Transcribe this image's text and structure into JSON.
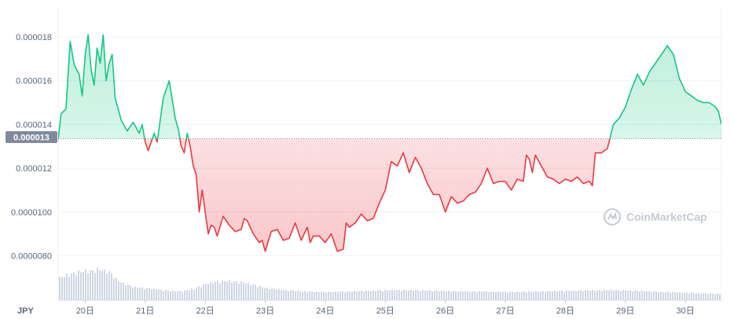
{
  "chart_data": {
    "type": "line",
    "y_tick_labels": [
      "0.000018",
      "0.000016",
      "0.000014",
      "0.000012",
      "0.0000100",
      "0.0000080"
    ],
    "y_ticks": [
      1.8e-05,
      1.6e-05,
      1.4e-05,
      1.2e-05,
      1e-05,
      8e-06
    ],
    "ylim": [
      7.8e-06,
      1.89e-05
    ],
    "x_tick_labels": [
      "20日",
      "21日",
      "22日",
      "23日",
      "24日",
      "25日",
      "26日",
      "27日",
      "28日",
      "29日",
      "30日"
    ],
    "x_ticks": [
      20,
      21,
      22,
      23,
      24,
      25,
      26,
      27,
      28,
      29,
      30
    ],
    "xlim": [
      19.55,
      30.6
    ],
    "currency": "JPY",
    "baseline_label": "0.000013",
    "baseline_value": 1.335e-05,
    "watermark": "CoinMarketCap",
    "colors": {
      "up": "#16c784",
      "down": "#ea3943",
      "volume": "#cfd6e4",
      "badge": "#808a9d",
      "grid": "#eff2f5"
    },
    "price": {
      "x": [
        19.55,
        19.6,
        19.68,
        19.75,
        19.82,
        19.9,
        19.95,
        20.0,
        20.05,
        20.1,
        20.15,
        20.2,
        20.25,
        20.3,
        20.35,
        20.4,
        20.45,
        20.5,
        20.6,
        20.7,
        20.8,
        20.9,
        20.95,
        21.0,
        21.05,
        21.1,
        21.15,
        21.2,
        21.3,
        21.4,
        21.5,
        21.55,
        21.6,
        21.65,
        21.7,
        21.75,
        21.8,
        21.85,
        21.9,
        21.95,
        22.0,
        22.05,
        22.1,
        22.15,
        22.2,
        22.3,
        22.4,
        22.5,
        22.6,
        22.65,
        22.7,
        22.8,
        22.9,
        22.95,
        23.0,
        23.1,
        23.2,
        23.3,
        23.4,
        23.5,
        23.6,
        23.7,
        23.75,
        23.8,
        23.9,
        24.0,
        24.1,
        24.2,
        24.3,
        24.35,
        24.4,
        24.5,
        24.6,
        24.7,
        24.8,
        24.9,
        25.0,
        25.1,
        25.2,
        25.3,
        25.4,
        25.5,
        25.6,
        25.7,
        25.8,
        25.9,
        26.0,
        26.1,
        26.2,
        26.3,
        26.4,
        26.5,
        26.6,
        26.7,
        26.8,
        26.9,
        27.0,
        27.1,
        27.2,
        27.3,
        27.35,
        27.4,
        27.45,
        27.5,
        27.6,
        27.7,
        27.8,
        27.9,
        28.0,
        28.1,
        28.2,
        28.3,
        28.4,
        28.45,
        28.5,
        28.6,
        28.7,
        28.8,
        28.9,
        29.0,
        29.1,
        29.2,
        29.3,
        29.4,
        29.5,
        29.6,
        29.7,
        29.8,
        29.9,
        30.0,
        30.1,
        30.2,
        30.3,
        30.4,
        30.5,
        30.55,
        30.6
      ],
      "y": [
        1.33e-05,
        1.45e-05,
        1.47e-05,
        1.78e-05,
        1.67e-05,
        1.63e-05,
        1.53e-05,
        1.72e-05,
        1.81e-05,
        1.65e-05,
        1.58e-05,
        1.75e-05,
        1.68e-05,
        1.81e-05,
        1.6e-05,
        1.68e-05,
        1.72e-05,
        1.52e-05,
        1.42e-05,
        1.37e-05,
        1.41e-05,
        1.36e-05,
        1.4e-05,
        1.32e-05,
        1.28e-05,
        1.32e-05,
        1.36e-05,
        1.32e-05,
        1.52e-05,
        1.6e-05,
        1.43e-05,
        1.38e-05,
        1.3e-05,
        1.27e-05,
        1.36e-05,
        1.3e-05,
        1.21e-05,
        1.17e-05,
        1e-05,
        1.1e-05,
        1e-05,
        9e-06,
        9.4e-06,
        9.3e-06,
        8.9e-06,
        9.8e-06,
        9.4e-06,
        9.1e-06,
        9.2e-06,
        9.7e-06,
        9.6e-06,
        9e-06,
        8.6e-06,
        8.7e-06,
        8.2e-06,
        9.1e-06,
        9.2e-06,
        8.7e-06,
        8.8e-06,
        9.5e-06,
        8.7e-06,
        9.3e-06,
        8.6e-06,
        8.9e-06,
        8.9e-06,
        8.6e-06,
        9e-06,
        8.2e-06,
        8.3e-06,
        9.5e-06,
        9.3e-06,
        9.5e-06,
        9.9e-06,
        9.6e-06,
        9.7e-06,
        1.04e-05,
        1.1e-05,
        1.23e-05,
        1.21e-05,
        1.27e-05,
        1.18e-05,
        1.25e-05,
        1.2e-05,
        1.13e-05,
        1.08e-05,
        1.08e-05,
        1e-05,
        1.07e-05,
        1.04e-05,
        1.05e-05,
        1.08e-05,
        1.09e-05,
        1.13e-05,
        1.2e-05,
        1.13e-05,
        1.14e-05,
        1.14e-05,
        1.1e-05,
        1.15e-05,
        1.14e-05,
        1.26e-05,
        1.24e-05,
        1.18e-05,
        1.26e-05,
        1.21e-05,
        1.16e-05,
        1.15e-05,
        1.13e-05,
        1.15e-05,
        1.14e-05,
        1.16e-05,
        1.13e-05,
        1.14e-05,
        1.12e-05,
        1.27e-05,
        1.27e-05,
        1.29e-05,
        1.4e-05,
        1.43e-05,
        1.48e-05,
        1.56e-05,
        1.63e-05,
        1.58e-05,
        1.64e-05,
        1.68e-05,
        1.72e-05,
        1.76e-05,
        1.72e-05,
        1.61e-05,
        1.55e-05,
        1.53e-05,
        1.51e-05,
        1.5e-05,
        1.5e-05,
        1.48e-05,
        1.46e-05,
        1.4e-05
      ]
    },
    "volume": {
      "x": [
        19.55,
        19.7,
        19.85,
        20.0,
        20.1,
        20.2,
        20.3,
        20.4,
        20.5,
        20.6,
        20.8,
        21.0,
        21.2,
        21.4,
        21.6,
        21.8,
        22.0,
        22.2,
        22.4,
        22.6,
        22.8,
        23.0,
        23.3,
        23.6,
        24.0,
        24.4,
        24.8,
        25.2,
        25.6,
        26.0,
        26.4,
        26.8,
        27.2,
        27.6,
        28.0,
        28.4,
        28.8,
        29.2,
        29.6,
        30.0,
        30.3,
        30.6
      ],
      "y": [
        0.62,
        0.72,
        0.8,
        0.85,
        0.83,
        0.9,
        0.84,
        0.81,
        0.6,
        0.48,
        0.35,
        0.32,
        0.28,
        0.24,
        0.22,
        0.3,
        0.45,
        0.52,
        0.53,
        0.5,
        0.42,
        0.32,
        0.26,
        0.22,
        0.2,
        0.22,
        0.24,
        0.26,
        0.25,
        0.23,
        0.22,
        0.21,
        0.2,
        0.22,
        0.24,
        0.25,
        0.26,
        0.24,
        0.2,
        0.18,
        0.16,
        0.14
      ]
    }
  }
}
